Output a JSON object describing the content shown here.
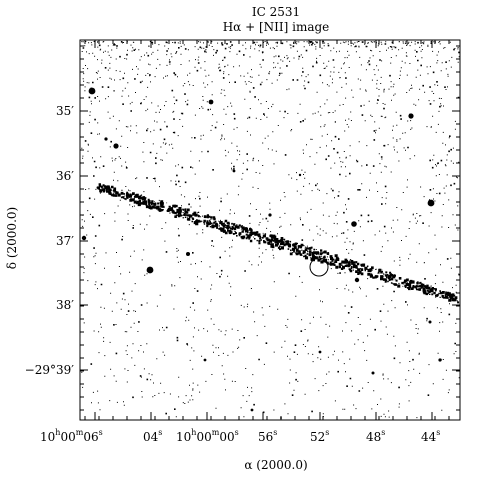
{
  "title": {
    "line1": "IC 2531",
    "line2": "Hα + [NII] image"
  },
  "axes": {
    "xlabel": "α (2000.0)",
    "ylabel": "δ (2000.0)",
    "y_ticks": [
      "35′",
      "36′",
      "37′",
      "38′",
      "−29°39′"
    ],
    "x_ticks": {
      "t1_h": "10",
      "t1_m": "00",
      "t1_s": "06",
      "t2": "04",
      "t3_h": "10",
      "t3_m": "00",
      "t3_s": "00",
      "t4": "56",
      "t5": "52",
      "t6": "48",
      "t7": "44"
    },
    "units": {
      "h": "h",
      "m": "m",
      "s": "s"
    }
  },
  "colors": {
    "ink": "#000000",
    "background": "#ffffff"
  }
}
